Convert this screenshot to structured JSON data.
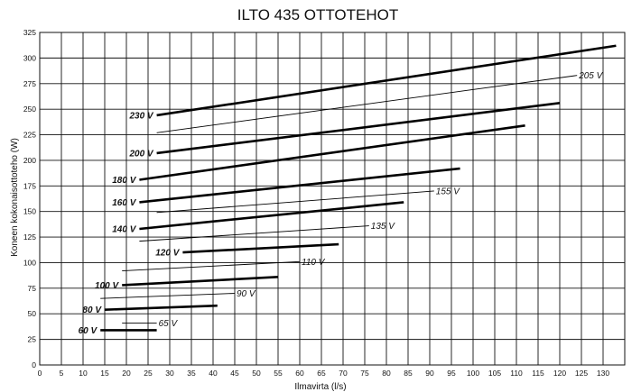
{
  "chart_data": {
    "type": "line",
    "title": "ILTO 435 OTTOTEHOT",
    "xlabel": "Ilmavirta (l/s)",
    "ylabel": "Koneen kokonaisottoteho (W)",
    "xlim": [
      0,
      135
    ],
    "ylim": [
      0,
      325
    ],
    "x_ticks": [
      0,
      5,
      10,
      15,
      20,
      25,
      30,
      35,
      40,
      45,
      50,
      55,
      60,
      65,
      70,
      75,
      80,
      85,
      90,
      95,
      100,
      105,
      110,
      115,
      120,
      125,
      130
    ],
    "y_ticks": [
      0,
      25,
      50,
      75,
      100,
      125,
      150,
      175,
      200,
      225,
      250,
      275,
      300,
      325
    ],
    "grid": true,
    "series": [
      {
        "name": "60 V",
        "style": "bold",
        "x": [
          14,
          27
        ],
        "y": [
          34,
          34
        ]
      },
      {
        "name": "65 V",
        "style": "thin",
        "x": [
          19,
          27
        ],
        "y": [
          41,
          41
        ]
      },
      {
        "name": "80 V",
        "style": "bold",
        "x": [
          15,
          41
        ],
        "y": [
          54,
          58
        ]
      },
      {
        "name": "90 V",
        "style": "thin",
        "x": [
          14,
          45
        ],
        "y": [
          65,
          70
        ]
      },
      {
        "name": "100 V",
        "style": "bold",
        "x": [
          19,
          55
        ],
        "y": [
          78,
          86
        ]
      },
      {
        "name": "110 V",
        "style": "thin",
        "x": [
          19,
          60
        ],
        "y": [
          92,
          101
        ]
      },
      {
        "name": "120 V",
        "style": "bold",
        "x": [
          33,
          69
        ],
        "y": [
          110,
          118
        ]
      },
      {
        "name": "135 V",
        "style": "thin",
        "x": [
          23,
          76
        ],
        "y": [
          121,
          136
        ]
      },
      {
        "name": "140 V",
        "style": "bold",
        "x": [
          23,
          84
        ],
        "y": [
          133,
          159
        ]
      },
      {
        "name": "155 V",
        "style": "thin",
        "x": [
          27,
          91
        ],
        "y": [
          149,
          170
        ]
      },
      {
        "name": "160 V",
        "style": "bold",
        "x": [
          23,
          97
        ],
        "y": [
          159,
          192
        ]
      },
      {
        "name": "180 V",
        "style": "bold",
        "x": [
          23,
          112
        ],
        "y": [
          181,
          234
        ]
      },
      {
        "name": "200 V",
        "style": "bold",
        "x": [
          27,
          120
        ],
        "y": [
          207,
          256
        ]
      },
      {
        "name": "205 V",
        "style": "thin",
        "x": [
          27,
          124
        ],
        "y": [
          227,
          283
        ]
      },
      {
        "name": "230 V",
        "style": "bold",
        "x": [
          27,
          133
        ],
        "y": [
          244,
          312
        ]
      }
    ]
  }
}
